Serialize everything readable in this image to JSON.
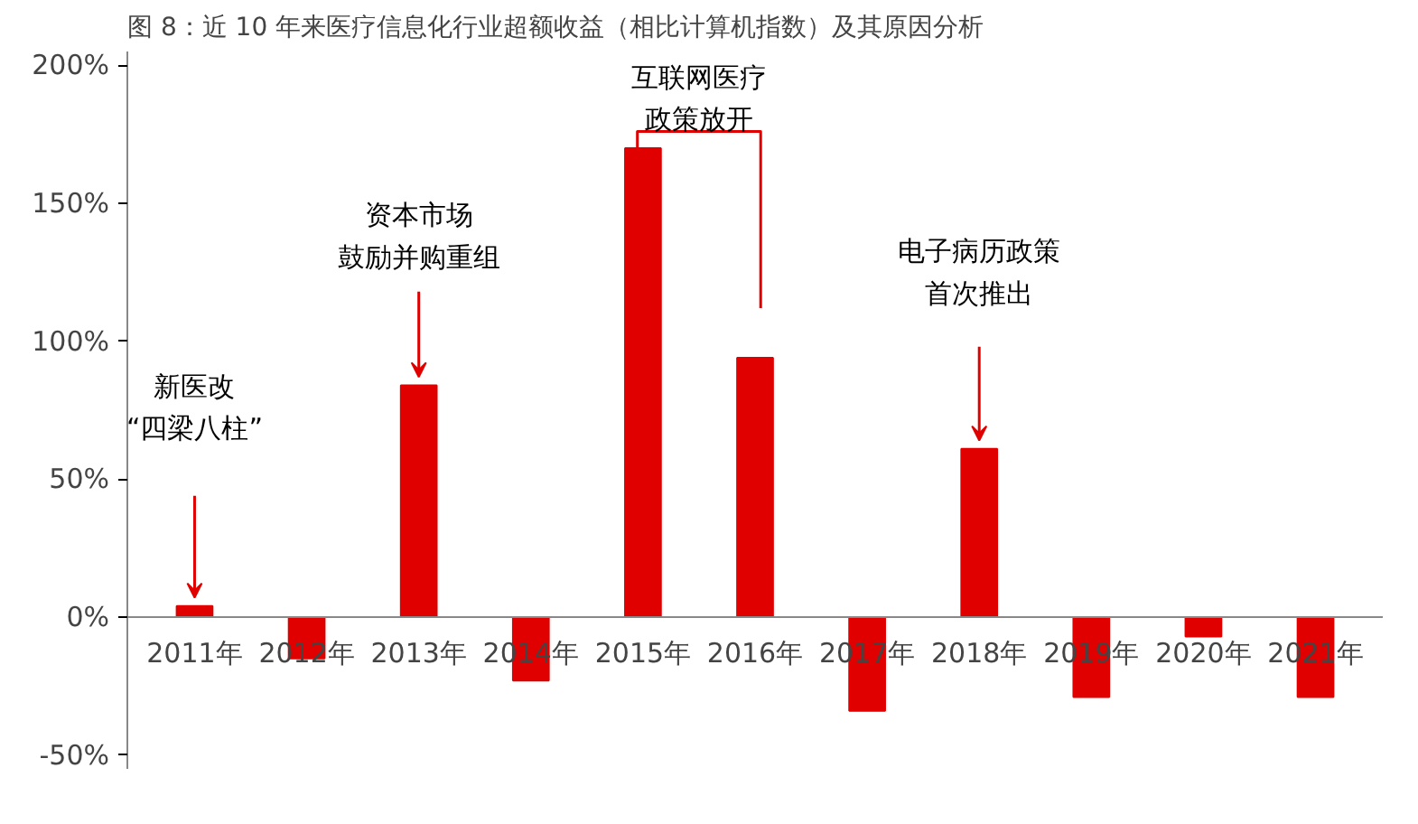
{
  "chart_data": {
    "type": "bar",
    "title": "图 8：近 10 年来医疗信息化行业超额收益（相比计算机指数）及其原因分析",
    "categories": [
      "2011年",
      "2012年",
      "2013年",
      "2014年",
      "2015年",
      "2016年",
      "2017年",
      "2018年",
      "2019年",
      "2020年",
      "2021年"
    ],
    "values": [
      4,
      -15,
      84,
      -23,
      170,
      94,
      -34,
      61,
      -29,
      -7,
      -29
    ],
    "color": "#e00000",
    "ylim": [
      -55,
      205
    ],
    "yticks": [
      {
        "value": -50,
        "label": "-50%"
      },
      {
        "value": 0,
        "label": "0%"
      },
      {
        "value": 50,
        "label": "50%"
      },
      {
        "value": 100,
        "label": "100%"
      },
      {
        "value": 150,
        "label": "150%"
      },
      {
        "value": 200,
        "label": "200%"
      }
    ],
    "grid": false,
    "annotations": [
      "新医改“四梁八柱”",
      "资本市场鼓励并购重组",
      "互联网医疗政策放开",
      "电子病历政策首次推出"
    ]
  }
}
